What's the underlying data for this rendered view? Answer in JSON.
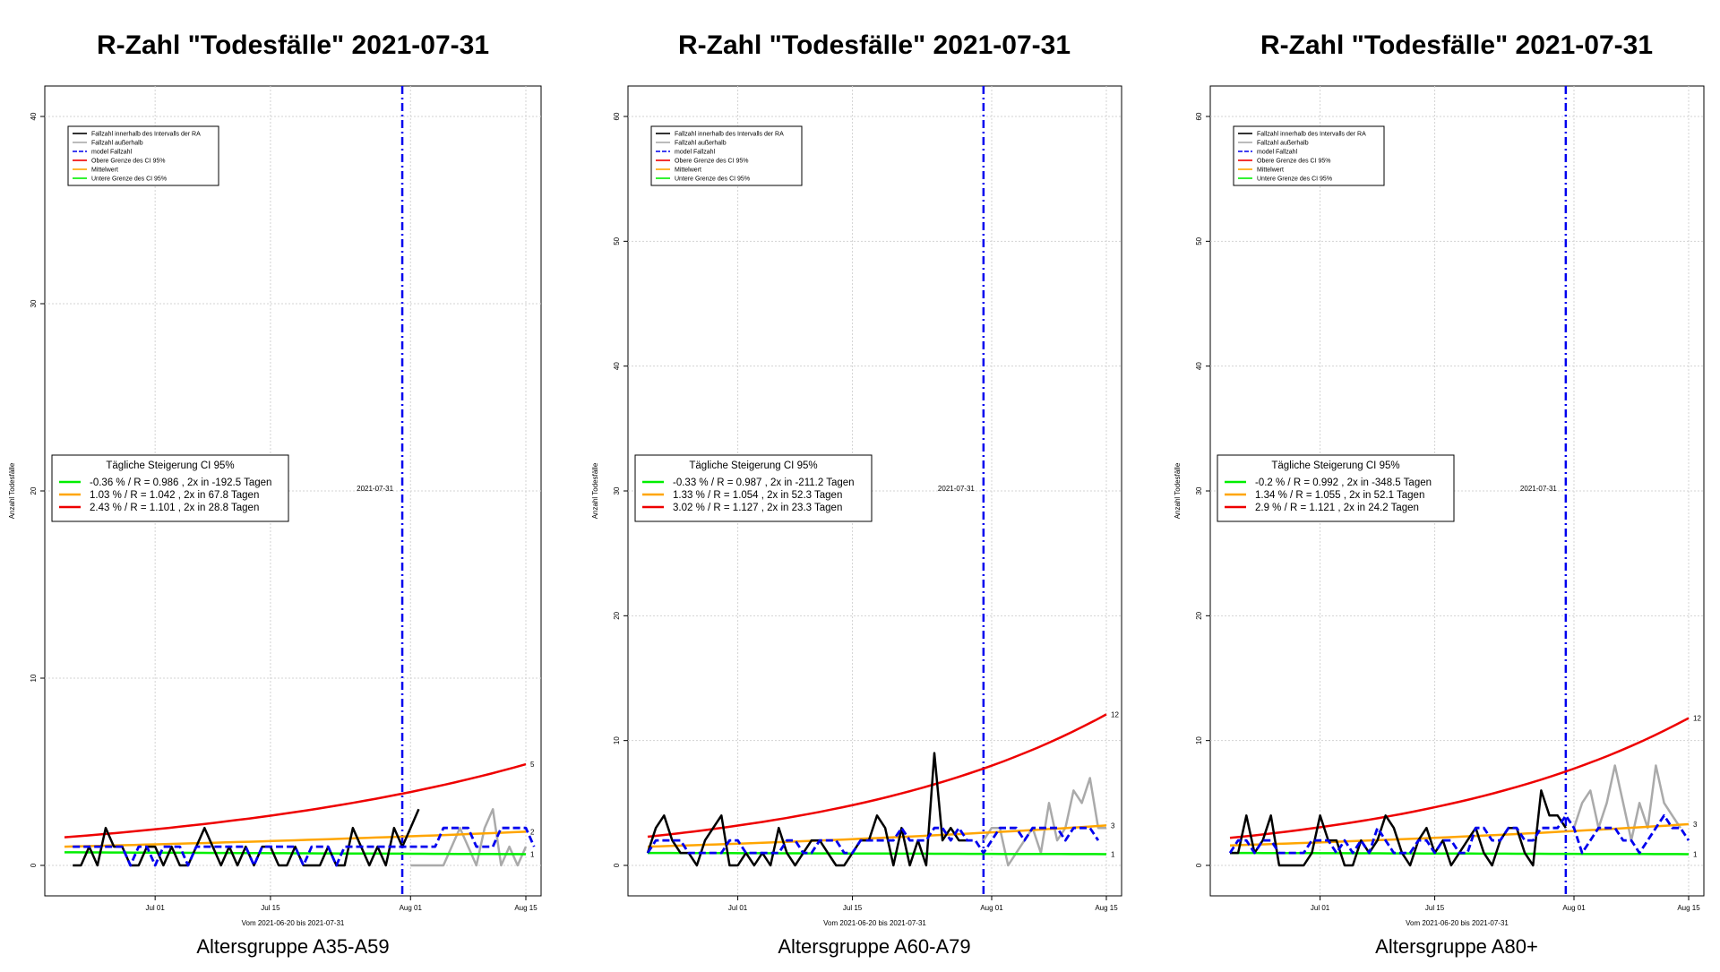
{
  "chart_data": [
    {
      "type": "line",
      "title": "R-Zahl \"Todesfälle\" 2021-07-31",
      "subtitle": "Altersgruppe A35-A59",
      "xlabel": "Vom 2021-06-20 bis 2021-07-31",
      "ylabel": "Anzahl Todesfälle",
      "x_range": [
        "2021-06-20",
        "2021-08-15"
      ],
      "ylim": [
        0,
        40
      ],
      "y_ticks": [
        0,
        10,
        20,
        30,
        40
      ],
      "x_ticks": [
        {
          "date": "2021-07-01",
          "label": "Jul 01"
        },
        {
          "date": "2021-07-15",
          "label": "Jul 15"
        },
        {
          "date": "2021-08-01",
          "label": "Aug 01"
        },
        {
          "date": "2021-08-15",
          "label": "Aug 15"
        }
      ],
      "grid": true,
      "vline": {
        "date": "2021-07-31",
        "label": "2021-07-31",
        "color": "#0000ee"
      },
      "legend_top": [
        "Fallzahl innerhalb des Intervalls der RA",
        "Fallzahl außerhalb",
        "model Fallzahl",
        "Obere Grenze des CI 95%",
        "Mittelwert",
        "Untere Grenze des CI 95%"
      ],
      "ci_title": "Tägliche Steigerung CI  95%",
      "ci_rows": [
        {
          "text": "-0.36 % / R = 0.986 , 2x in -192.5 Tagen",
          "color": "#00ee00"
        },
        {
          "text": "1.03 % / R = 1.042 , 2x in 67.8 Tagen",
          "color": "#ffa500"
        },
        {
          "text": "2.43 % / R = 1.101 , 2x in 28.8 Tagen",
          "color": "#ee0000"
        }
      ],
      "series": [
        {
          "role": "inside",
          "color": "#000000",
          "start": "2021-06-21",
          "values": [
            0,
            0,
            1,
            0,
            2,
            1,
            1,
            0,
            0,
            1,
            1,
            0,
            1,
            0,
            0,
            1,
            2,
            1,
            0,
            1,
            0,
            1,
            0,
            1,
            1,
            0,
            0,
            1,
            0,
            0,
            0,
            1,
            0,
            0,
            2,
            1,
            0,
            1,
            0,
            2,
            1,
            2,
            3
          ]
        },
        {
          "role": "outside",
          "color": "#aaaaaa",
          "start": "2021-08-01",
          "values": [
            0,
            0,
            0,
            0,
            0,
            1,
            2,
            1,
            0,
            2,
            3,
            0,
            1,
            0,
            1
          ]
        },
        {
          "role": "model",
          "color": "#0000ee",
          "start": "2021-06-21",
          "values": [
            1,
            1,
            1,
            1,
            1,
            1,
            1,
            0,
            1,
            1,
            0,
            1,
            1,
            1,
            0,
            1,
            1,
            1,
            1,
            1,
            1,
            1,
            0,
            1,
            1,
            1,
            1,
            1,
            0,
            1,
            1,
            1,
            0,
            1,
            1,
            1,
            1,
            1,
            1,
            1,
            1,
            1,
            1,
            1,
            1,
            2,
            2,
            2,
            2,
            1,
            1,
            1,
            2,
            2,
            2,
            2,
            1
          ]
        },
        {
          "role": "upper",
          "color": "#ee0000",
          "from": [
            0,
            1.5
          ],
          "to": [
            56,
            5.4
          ],
          "end_label": "5"
        },
        {
          "role": "mean",
          "color": "#ffa500",
          "from": [
            0,
            1.0
          ],
          "to": [
            56,
            1.8
          ],
          "end_label": "2"
        },
        {
          "role": "lower",
          "color": "#00ee00",
          "from": [
            0,
            0.7
          ],
          "to": [
            56,
            0.6
          ],
          "end_label": "1"
        }
      ]
    },
    {
      "type": "line",
      "title": "R-Zahl \"Todesfälle\" 2021-07-31",
      "subtitle": "Altersgruppe A60-A79",
      "xlabel": "Vom 2021-06-20 bis 2021-07-31",
      "ylabel": "Anzahl Todesfälle",
      "x_range": [
        "2021-06-20",
        "2021-08-15"
      ],
      "ylim": [
        0,
        60
      ],
      "y_ticks": [
        0,
        10,
        20,
        30,
        40,
        50,
        60
      ],
      "x_ticks": [
        {
          "date": "2021-07-01",
          "label": "Jul 01"
        },
        {
          "date": "2021-07-15",
          "label": "Jul 15"
        },
        {
          "date": "2021-08-01",
          "label": "Aug 01"
        },
        {
          "date": "2021-08-15",
          "label": "Aug 15"
        }
      ],
      "grid": true,
      "vline": {
        "date": "2021-07-31",
        "label": "2021-07-31",
        "color": "#0000ee"
      },
      "legend_top": [
        "Fallzahl innerhalb des Intervalls der RA",
        "Fallzahl außerhalb",
        "model Fallzahl",
        "Obere Grenze des CI 95%",
        "Mittelwert",
        "Untere Grenze des CI 95%"
      ],
      "ci_title": "Tägliche Steigerung CI  95%",
      "ci_rows": [
        {
          "text": "-0.33 % / R = 0.987 , 2x in -211.2 Tagen",
          "color": "#00ee00"
        },
        {
          "text": "1.33 % / R = 1.054 , 2x in 52.3 Tagen",
          "color": "#ffa500"
        },
        {
          "text": "3.02 % / R = 1.127 , 2x in 23.3 Tagen",
          "color": "#ee0000"
        }
      ],
      "series": [
        {
          "role": "inside",
          "color": "#000000",
          "start": "2021-06-20",
          "values": [
            1,
            3,
            4,
            2,
            1,
            1,
            0,
            2,
            3,
            4,
            0,
            0,
            1,
            0,
            1,
            0,
            3,
            1,
            0,
            1,
            2,
            2,
            1,
            0,
            0,
            1,
            2,
            2,
            4,
            3,
            0,
            3,
            0,
            2,
            0,
            9,
            2,
            3,
            2,
            2
          ]
        },
        {
          "role": "outside",
          "color": "#aaaaaa",
          "start": "2021-07-31",
          "values": [
            2,
            3,
            3,
            0,
            1,
            2,
            3,
            1,
            5,
            2,
            3,
            6,
            5,
            7,
            3,
            3
          ]
        },
        {
          "role": "model",
          "color": "#0000ee",
          "start": "2021-06-20",
          "values": [
            1,
            2,
            2,
            2,
            2,
            1,
            1,
            1,
            1,
            1,
            2,
            2,
            1,
            1,
            1,
            1,
            1,
            2,
            2,
            1,
            1,
            2,
            2,
            2,
            1,
            1,
            2,
            2,
            2,
            2,
            2,
            3,
            2,
            2,
            2,
            3,
            3,
            2,
            3,
            2,
            2,
            1,
            2,
            3,
            3,
            3,
            2,
            3,
            3,
            3,
            3,
            2,
            3,
            3,
            3,
            2
          ]
        },
        {
          "role": "upper",
          "color": "#ee0000",
          "from": [
            0,
            2.3
          ],
          "to": [
            56,
            12.1
          ],
          "end_label": "12"
        },
        {
          "role": "mean",
          "color": "#ffa500",
          "from": [
            0,
            1.5
          ],
          "to": [
            56,
            3.2
          ],
          "end_label": "3"
        },
        {
          "role": "lower",
          "color": "#00ee00",
          "from": [
            0,
            1.0
          ],
          "to": [
            56,
            0.9
          ],
          "end_label": "1"
        }
      ]
    },
    {
      "type": "line",
      "title": "R-Zahl \"Todesfälle\" 2021-07-31",
      "subtitle": "Altersgruppe A80+",
      "xlabel": "Vom 2021-06-20 bis 2021-07-31",
      "ylabel": "Anzahl Todesfälle",
      "x_range": [
        "2021-06-20",
        "2021-08-15"
      ],
      "ylim": [
        0,
        60
      ],
      "y_ticks": [
        0,
        10,
        20,
        30,
        40,
        50,
        60
      ],
      "x_ticks": [
        {
          "date": "2021-07-01",
          "label": "Jul 01"
        },
        {
          "date": "2021-07-15",
          "label": "Jul 15"
        },
        {
          "date": "2021-08-01",
          "label": "Aug 01"
        },
        {
          "date": "2021-08-15",
          "label": "Aug 15"
        }
      ],
      "grid": true,
      "vline": {
        "date": "2021-07-31",
        "label": "2021-07-31",
        "color": "#0000ee"
      },
      "legend_top": [
        "Fallzahl innerhalb des Intervalls der RA",
        "Fallzahl außerhalb",
        "model Fallzahl",
        "Obere Grenze des CI 95%",
        "Mittelwert",
        "Untere Grenze des CI 95%"
      ],
      "ci_title": "Tägliche Steigerung CI  95%",
      "ci_rows": [
        {
          "text": "-0.2 % / R = 0.992 , 2x in -348.5 Tagen",
          "color": "#00ee00"
        },
        {
          "text": "1.34 % / R = 1.055 , 2x in 52.1 Tagen",
          "color": "#ffa500"
        },
        {
          "text": "2.9 % / R = 1.121 , 2x in 24.2 Tagen",
          "color": "#ee0000"
        }
      ],
      "series": [
        {
          "role": "inside",
          "color": "#000000",
          "start": "2021-06-20",
          "values": [
            1,
            1,
            4,
            1,
            2,
            4,
            0,
            0,
            0,
            0,
            1,
            4,
            2,
            2,
            0,
            0,
            2,
            1,
            2,
            4,
            3,
            1,
            0,
            2,
            3,
            1,
            2,
            0,
            1,
            2,
            3,
            1,
            0,
            2,
            3,
            3,
            1,
            0,
            6,
            4,
            4,
            3
          ]
        },
        {
          "role": "outside",
          "color": "#aaaaaa",
          "start": "2021-08-01",
          "values": [
            3,
            5,
            6,
            3,
            5,
            8,
            5,
            2,
            5,
            3,
            8,
            5,
            4,
            3
          ]
        },
        {
          "role": "model",
          "color": "#0000ee",
          "start": "2021-06-20",
          "values": [
            1,
            2,
            2,
            1,
            2,
            2,
            1,
            1,
            1,
            1,
            2,
            2,
            2,
            1,
            2,
            1,
            2,
            1,
            3,
            2,
            1,
            1,
            1,
            2,
            2,
            1,
            2,
            2,
            1,
            1,
            3,
            3,
            2,
            2,
            3,
            3,
            2,
            2,
            3,
            3,
            3,
            4,
            3,
            1,
            2,
            3,
            3,
            3,
            2,
            2,
            1,
            2,
            3,
            4,
            3,
            3,
            2
          ]
        },
        {
          "role": "upper",
          "color": "#ee0000",
          "from": [
            0,
            2.2
          ],
          "to": [
            56,
            11.8
          ],
          "end_label": "12"
        },
        {
          "role": "mean",
          "color": "#ffa500",
          "from": [
            0,
            1.6
          ],
          "to": [
            56,
            3.3
          ],
          "end_label": "3"
        },
        {
          "role": "lower",
          "color": "#00ee00",
          "from": [
            0,
            1.0
          ],
          "to": [
            56,
            0.9
          ],
          "end_label": "1"
        }
      ]
    }
  ]
}
